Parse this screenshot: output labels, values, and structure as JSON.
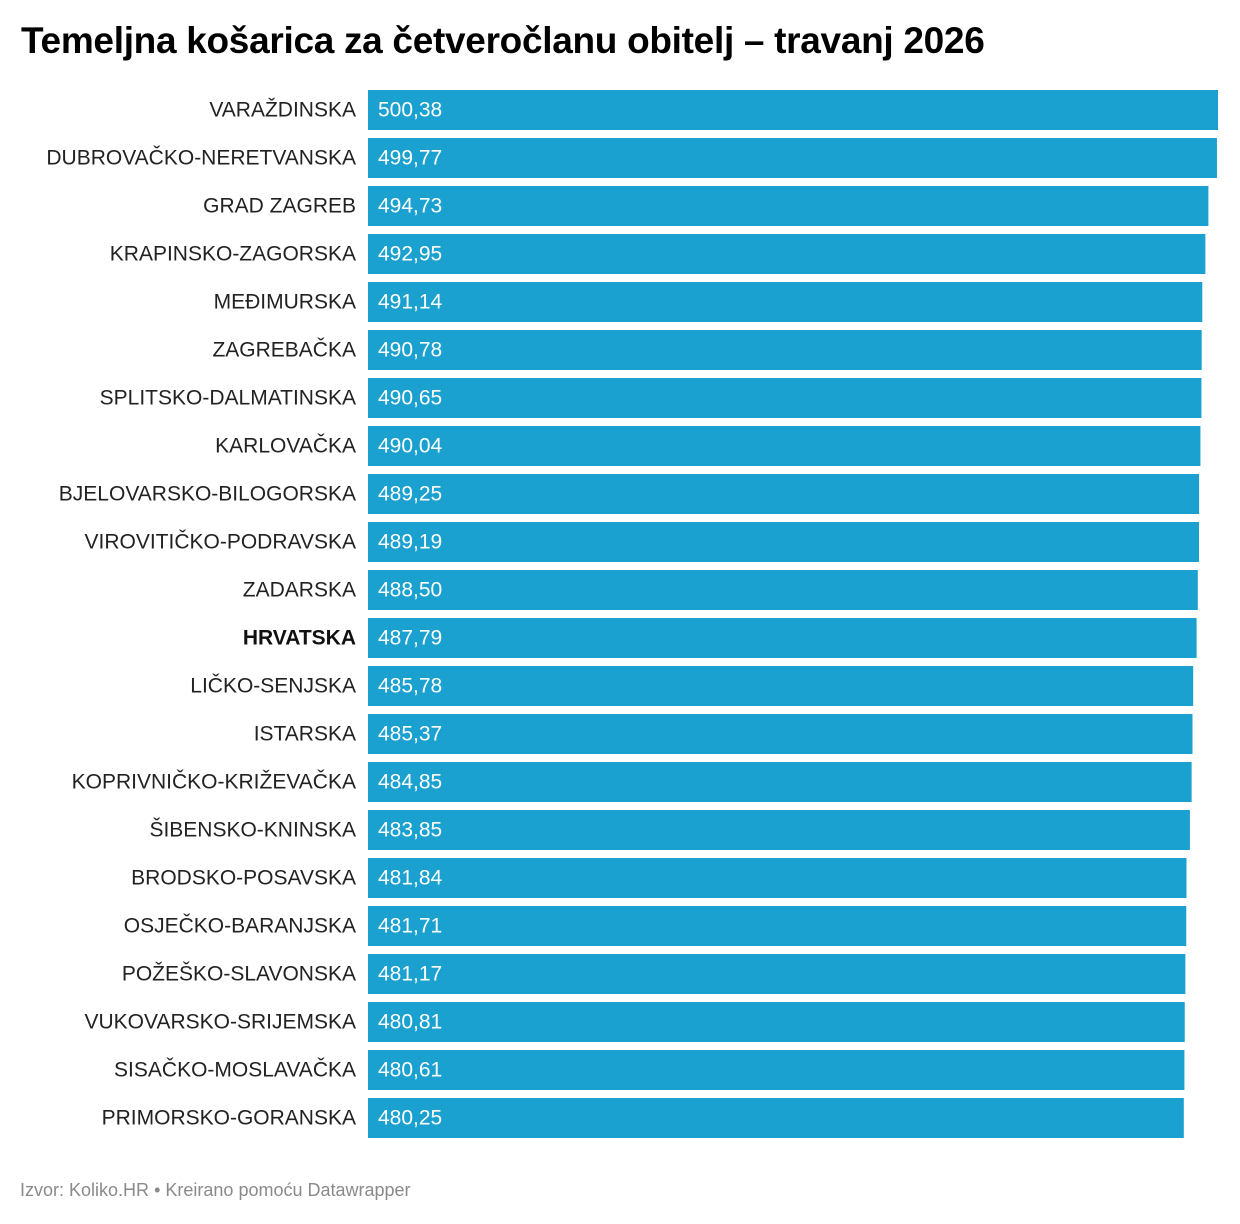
{
  "title": "Temeljna košarica za četveročlanu obitelj – travanj 2026",
  "footer": {
    "source_label": "Izvor:",
    "source_name": "Koliko.HR",
    "separator": "•",
    "credit": "Kreirano pomoću Datawrapper"
  },
  "colors": {
    "bar": "#1aa1cf",
    "label": "#222222",
    "value_label": "#ffffff",
    "footer": "#8a8a8a"
  },
  "chart_data": {
    "type": "bar",
    "orientation": "horizontal",
    "title": "Temeljna košarica za četveročlanu obitelj – travanj 2026",
    "xlim": [
      0,
      500.38
    ],
    "grid": false,
    "highlighted_category": "HRVATSKA",
    "categories": [
      "VARAŽDINSKA",
      "DUBROVAČKO-NERETVANSKA",
      "GRAD ZAGREB",
      "KRAPINSKO-ZAGORSKA",
      "MEĐIMURSKA",
      "ZAGREBAČKA",
      "SPLITSKO-DALMATINSKA",
      "KARLOVAČKA",
      "BJELOVARSKO-BILOGORSKA",
      "VIROVITIČKO-PODRAVSKA",
      "ZADARSKA",
      "HRVATSKA",
      "LIČKO-SENJSKA",
      "ISTARSKA",
      "KOPRIVNIČKO-KRIŽEVAČKA",
      "ŠIBENSKO-KNINSKA",
      "BRODSKO-POSAVSKA",
      "OSJEČKO-BARANJSKA",
      "POŽEŠKO-SLAVONSKA",
      "VUKOVARSKO-SRIJEMSKA",
      "SISAČKO-MOSLAVAČKA",
      "PRIMORSKO-GORANSKA"
    ],
    "values": [
      500.38,
      499.77,
      494.73,
      492.95,
      491.14,
      490.78,
      490.65,
      490.04,
      489.25,
      489.19,
      488.5,
      487.79,
      485.78,
      485.37,
      484.85,
      483.85,
      481.84,
      481.71,
      481.17,
      480.81,
      480.61,
      480.25
    ],
    "value_labels": [
      "500,38",
      "499,77",
      "494,73",
      "492,95",
      "491,14",
      "490,78",
      "490,65",
      "490,04",
      "489,25",
      "489,19",
      "488,50",
      "487,79",
      "485,78",
      "485,37",
      "484,85",
      "483,85",
      "481,84",
      "481,71",
      "481,17",
      "480,81",
      "480,61",
      "480,25"
    ]
  }
}
